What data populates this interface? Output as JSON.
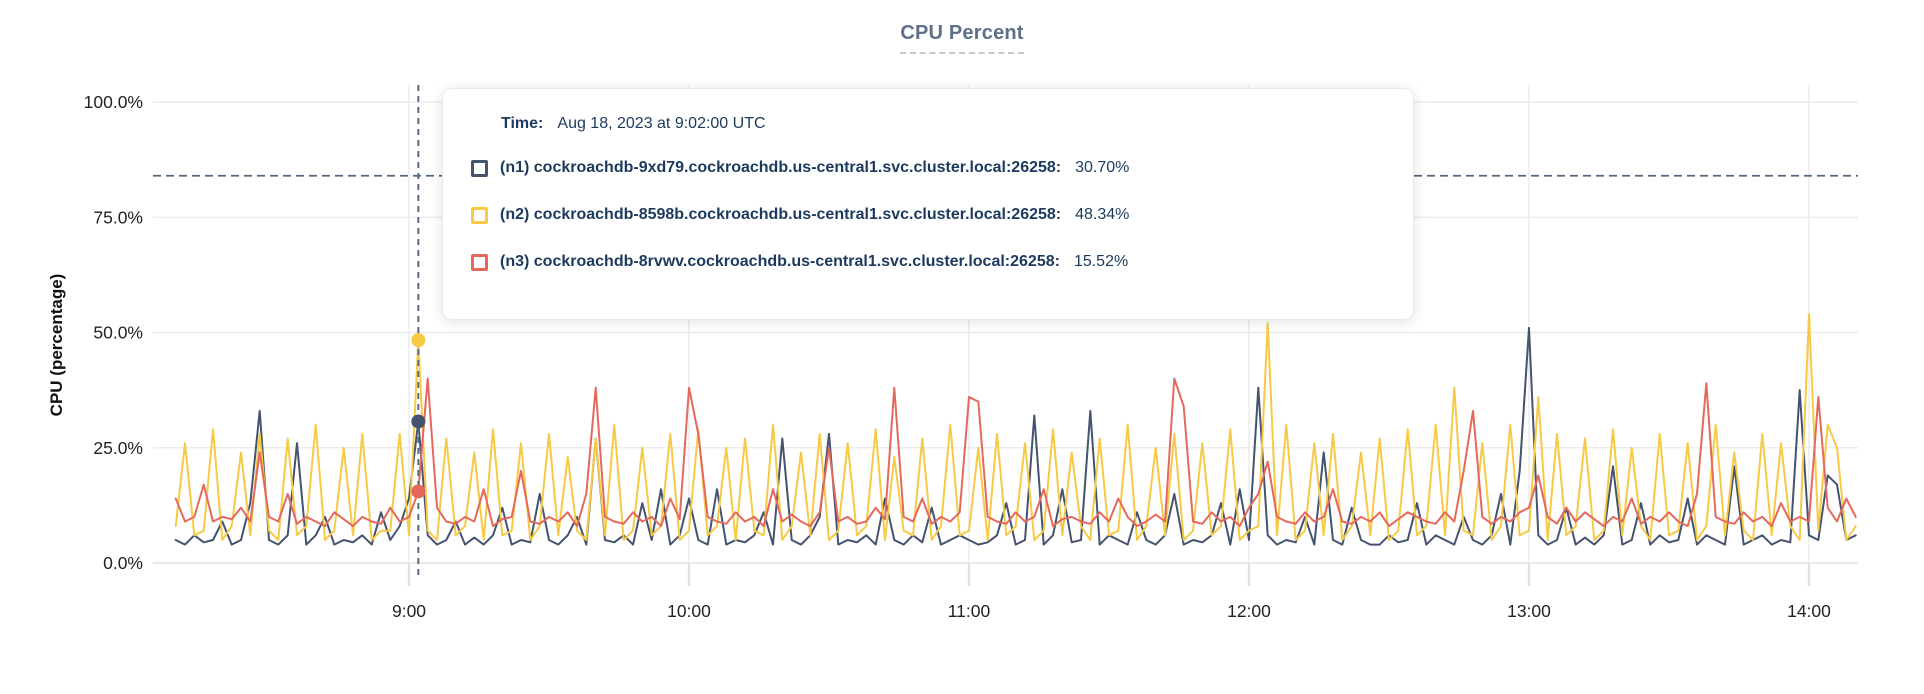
{
  "title": "CPU Percent",
  "y_axis_label": "CPU (percentage)",
  "tooltip": {
    "time_label": "Time:",
    "time_value": "Aug 18, 2023 at 9:02:00 UTC",
    "rows": [
      {
        "node": "n1",
        "label": "(n1) cockroachdb-9xd79.cockroachdb.us-central1.svc.cluster.local:26258:",
        "value": "30.70%",
        "color": "#44536e"
      },
      {
        "node": "n2",
        "label": "(n2) cockroachdb-8598b.cockroachdb.us-central1.svc.cluster.local:26258:",
        "value": "48.34%",
        "color": "#f7ca45"
      },
      {
        "node": "n3",
        "label": "(n3) cockroachdb-8rvwv.cockroachdb.us-central1.svc.cluster.local:26258:",
        "value": "15.52%",
        "color": "#e4695c"
      }
    ]
  },
  "colors": {
    "grid": "#ececec",
    "grid_dark": "#e0e0e0",
    "axis_text": "#222222",
    "threshold": "#54677e",
    "hover_line": "#54677e",
    "title": "#5d7087",
    "tooltip_text": "#1c3a5e"
  },
  "chart_data": {
    "type": "line",
    "title": "CPU Percent",
    "xlabel": "",
    "ylabel": "CPU (percentage)",
    "ylim": [
      0,
      100
    ],
    "grid": true,
    "legend_position": "hover-tooltip",
    "y_tick_percents": [
      0,
      25,
      50,
      75,
      100
    ],
    "y_tick_labels": [
      "0.0%",
      "25.0%",
      "50.0%",
      "75.0%",
      "100.0%"
    ],
    "x_tick_labels": [
      "9:00",
      "10:00",
      "11:00",
      "12:00",
      "13:00",
      "14:00"
    ],
    "x_start_time": "8:10",
    "x_step_minutes": 2,
    "threshold_dashed_line_percent": 84,
    "hover": {
      "index": 26,
      "time": "9:02",
      "values": {
        "n1": 30.7,
        "n2": 48.34,
        "n3": 15.52
      }
    },
    "series": [
      {
        "id": "n1",
        "name": "(n1) cockroachdb-9xd79.cockroachdb.us-central1.svc.cluster.local:26258",
        "color": "#44536e",
        "values": [
          5,
          4,
          6,
          4.5,
          5,
          9,
          4,
          5,
          13,
          33,
          5,
          4,
          6,
          26,
          4,
          6,
          10,
          4,
          5,
          4.5,
          6,
          4,
          11,
          5,
          8,
          14,
          30.7,
          6,
          4,
          5,
          9,
          4,
          5.5,
          4,
          6,
          12,
          4,
          5,
          4.5,
          15,
          5,
          4,
          6,
          10,
          4,
          27,
          5,
          4.5,
          6,
          4,
          13,
          5,
          16,
          4,
          6,
          14,
          5,
          4,
          16,
          4,
          5,
          4.5,
          6,
          11,
          4,
          27,
          5,
          4,
          6,
          10,
          28,
          4,
          5,
          4.5,
          6,
          4,
          14,
          5,
          4,
          6,
          4.5,
          12,
          4,
          5,
          6,
          5,
          4,
          4.5,
          6,
          13,
          4,
          5,
          32,
          4,
          6,
          16,
          4.5,
          5,
          33,
          4,
          6,
          5,
          4,
          11,
          5,
          4,
          6,
          15,
          4,
          5,
          4.5,
          6,
          13,
          4,
          16,
          5,
          38,
          6,
          4,
          5,
          4.5,
          10,
          4,
          24,
          5,
          4,
          12,
          5,
          4,
          4,
          6,
          4.5,
          5,
          13,
          4,
          6,
          5,
          4,
          10,
          5,
          4,
          6,
          15,
          4,
          20,
          51,
          6,
          4,
          5,
          12,
          4,
          5.5,
          4,
          6,
          21,
          4,
          5,
          13,
          4,
          6,
          4.5,
          5,
          14,
          4,
          6,
          5,
          4,
          21,
          4,
          5,
          6,
          4,
          5,
          4.5,
          37.5,
          6,
          5,
          19,
          17,
          5,
          6
        ]
      },
      {
        "id": "n2",
        "name": "(n2) cockroachdb-8598b.cockroachdb.us-central1.svc.cluster.local:26258",
        "color": "#f7ca45",
        "values": [
          8,
          26,
          6,
          7,
          29,
          5,
          8,
          24,
          6,
          28,
          7,
          5,
          27,
          6,
          8,
          30,
          5,
          7,
          25,
          6,
          28,
          5,
          7,
          7,
          28,
          6,
          48.34,
          7,
          5,
          27,
          6,
          8,
          24,
          5,
          29,
          6,
          7,
          26,
          5,
          8,
          28,
          6,
          23,
          7,
          5,
          27,
          6,
          30,
          5,
          7,
          25,
          6,
          8,
          28,
          5,
          7,
          29,
          6,
          8,
          25,
          5,
          27,
          7,
          6,
          30,
          5,
          8,
          24,
          6,
          28,
          5,
          7,
          26,
          6,
          8,
          29,
          5,
          23,
          7,
          6,
          27,
          5,
          8,
          30,
          6,
          7,
          25,
          5,
          28,
          6,
          8,
          26,
          5,
          7,
          29,
          6,
          24,
          8,
          5,
          27,
          6,
          7,
          30,
          5,
          8,
          25,
          6,
          28,
          5,
          7,
          26,
          6,
          8,
          29,
          5,
          7,
          8,
          52,
          6,
          30,
          5,
          7,
          26,
          6,
          28,
          5,
          8,
          24,
          6,
          27,
          5,
          7,
          29,
          6,
          8,
          30,
          6,
          38,
          7,
          6,
          26,
          5,
          8,
          30,
          6,
          7,
          36,
          5,
          28,
          6,
          8,
          27,
          5,
          7,
          29,
          6,
          25,
          8,
          5,
          28,
          6,
          7,
          26,
          5,
          8,
          30,
          6,
          24,
          7,
          5,
          28,
          6,
          26,
          8,
          5,
          54,
          7,
          30,
          25,
          5,
          8
        ]
      },
      {
        "id": "n3",
        "name": "(n3) cockroachdb-8rvwv.cockroachdb.us-central1.svc.cluster.local:26258",
        "color": "#e4695c",
        "values": [
          14,
          9,
          10,
          17,
          9,
          10,
          9.5,
          12,
          9,
          24,
          10,
          9,
          15,
          8.5,
          10,
          9,
          8,
          11,
          9.5,
          8,
          10,
          9,
          8.5,
          12,
          9,
          10,
          15.52,
          40,
          12,
          9,
          8.5,
          10,
          9,
          16,
          8,
          9.5,
          10,
          20,
          9,
          8.5,
          10,
          9,
          11,
          8,
          15,
          38,
          10,
          9,
          8.5,
          11,
          9,
          10,
          8,
          14,
          9.5,
          38,
          28,
          10,
          9,
          8.5,
          11,
          9,
          10,
          8,
          16,
          9,
          10.5,
          9,
          8,
          11,
          25,
          9,
          10,
          8.5,
          9,
          12,
          9.5,
          38,
          10,
          9,
          14,
          8.5,
          10,
          9,
          11,
          36,
          35,
          10,
          9,
          8.5,
          11,
          9,
          10,
          16,
          8,
          9.5,
          10,
          9,
          8.5,
          11,
          9,
          14,
          10,
          8,
          9,
          10.5,
          9,
          40,
          34,
          9,
          8.5,
          11,
          9,
          10,
          8,
          12,
          15,
          22,
          10,
          9,
          8.5,
          11,
          9,
          10,
          16,
          9,
          8.5,
          10,
          9,
          11,
          8,
          9.5,
          11,
          10,
          9,
          8.5,
          11,
          9,
          20,
          33,
          10,
          8.5,
          10,
          9,
          11,
          12,
          19,
          10,
          8.5,
          12,
          9,
          11,
          9.5,
          8,
          10,
          9,
          14,
          8.5,
          10,
          9,
          11,
          9,
          8,
          15,
          39,
          10,
          9,
          8.5,
          11,
          9,
          10,
          8,
          13,
          9,
          10,
          9,
          36,
          12,
          9,
          14,
          10
        ]
      }
    ]
  }
}
